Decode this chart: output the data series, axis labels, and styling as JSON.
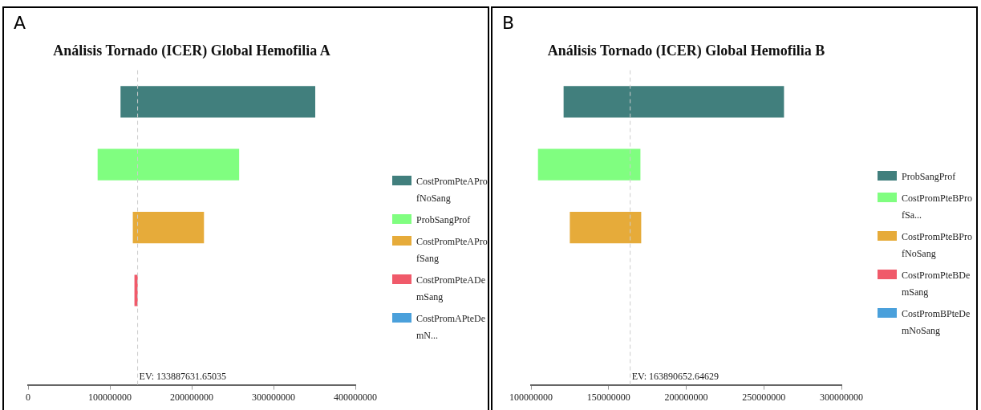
{
  "chart_data": [
    {
      "type": "bar",
      "orientation": "horizontal",
      "title": "Análisis Tornado (ICER) Global Hemofilia A",
      "categories": [
        null,
        null,
        null,
        null,
        null
      ],
      "series": [
        {
          "name": "CostPromPteAProfNoSang",
          "color": "#417f7d",
          "values": [
            238000000,
            null,
            null,
            null,
            null
          ],
          "base": [
            113000000,
            null,
            null,
            null,
            null
          ]
        },
        {
          "name": "ProbSangProf",
          "color": "#80fe80",
          "values": [
            null,
            173000000,
            null,
            null,
            null
          ],
          "base": [
            null,
            85000000,
            null,
            null,
            null
          ]
        },
        {
          "name": "CostPromPteAProfSang",
          "color": "#e6ab3a",
          "values": [
            null,
            null,
            87000000,
            null,
            null
          ],
          "base": [
            null,
            null,
            128000000,
            null,
            null
          ]
        },
        {
          "name": "CostPromPteADemSang",
          "color": "#f05a6a",
          "values": [
            null,
            null,
            null,
            4000000,
            null
          ],
          "base": [
            null,
            null,
            null,
            130000000,
            null
          ]
        },
        {
          "name": "CostPromAPteDemN...",
          "color": "#4aa0db",
          "values": [
            null,
            null,
            null,
            null,
            null
          ],
          "base": [
            null,
            null,
            null,
            null,
            null
          ]
        }
      ],
      "xlim": [
        0,
        400000000
      ],
      "xticks": [
        0,
        100000000,
        200000000,
        300000000,
        400000000
      ],
      "tick_labels": "x",
      "legend": "right",
      "ref_lines": [
        {
          "axis": "x",
          "value": 133887631.65035,
          "label": "EV: 133887631.65035",
          "color": "#cccccc",
          "line_style": "dashed"
        }
      ],
      "annotations": [
        "A"
      ]
    },
    {
      "type": "bar",
      "orientation": "horizontal",
      "title": "Análisis Tornado (ICER) Global Hemofilia B",
      "categories": [
        null,
        null,
        null,
        null,
        null
      ],
      "series": [
        {
          "name": "ProbSangProf",
          "color": "#417f7d",
          "values": [
            142000000,
            null,
            null,
            null,
            null
          ],
          "base": [
            121000000,
            null,
            null,
            null,
            null
          ]
        },
        {
          "name": "CostPromPteBProfSa...",
          "color": "#80fe80",
          "values": [
            null,
            66000000,
            null,
            null,
            null
          ],
          "base": [
            null,
            104500000,
            null,
            null,
            null
          ]
        },
        {
          "name": "CostPromPteBProfNoSang",
          "color": "#e6ab3a",
          "values": [
            null,
            null,
            46000000,
            null,
            null
          ],
          "base": [
            null,
            null,
            125000000,
            null,
            null
          ]
        },
        {
          "name": "CostPromPteBDemSang",
          "color": "#f05a6a",
          "values": [
            null,
            null,
            null,
            null,
            null
          ],
          "base": [
            null,
            null,
            null,
            null,
            null
          ]
        },
        {
          "name": "CostPromBPteDemNoSang",
          "color": "#4aa0db",
          "values": [
            null,
            null,
            null,
            null,
            null
          ],
          "base": [
            null,
            null,
            null,
            null,
            null
          ]
        }
      ],
      "xlim": [
        100000000,
        300000000
      ],
      "xticks": [
        100000000,
        150000000,
        200000000,
        250000000,
        300000000
      ],
      "tick_labels": "x",
      "legend": "right",
      "ref_lines": [
        {
          "axis": "x",
          "value": 163890652.64629,
          "label": "EV: 163890652.64629",
          "color": "#cccccc",
          "line_style": "dashed"
        }
      ],
      "annotations": [
        "B"
      ]
    }
  ]
}
